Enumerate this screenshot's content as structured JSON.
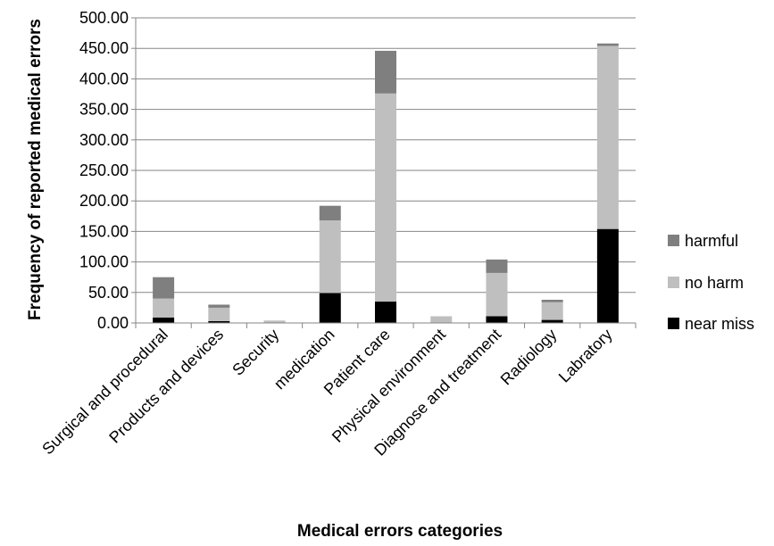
{
  "chart_data": {
    "type": "bar",
    "stacked": true,
    "title": "",
    "xlabel": "Medical errors categories",
    "ylabel": "Frequency of reported medical errors",
    "ylim": [
      0,
      500
    ],
    "yticks": [
      "0.00",
      "50.00",
      "100.00",
      "150.00",
      "200.00",
      "250.00",
      "300.00",
      "350.00",
      "400.00",
      "450.00",
      "500.00"
    ],
    "grid": true,
    "legend_position": "right",
    "categories": [
      "Surgical and procedural",
      "Products and devices",
      "Security",
      "medication",
      "Patient care",
      "Physical environment",
      "Diagnose and treatment",
      "Radiology",
      "Labratory"
    ],
    "series": [
      {
        "name": "near miss",
        "color": "#000000",
        "values": [
          9,
          3,
          0,
          49,
          35,
          0,
          11,
          5,
          154
        ]
      },
      {
        "name": "no harm",
        "color": "#bfbfbf",
        "values": [
          31,
          22,
          4,
          119,
          341,
          11,
          71,
          29,
          300
        ]
      },
      {
        "name": "harmful",
        "color": "#7f7f7f",
        "values": [
          35,
          5,
          0,
          24,
          70,
          0,
          22,
          4,
          4
        ]
      }
    ]
  }
}
